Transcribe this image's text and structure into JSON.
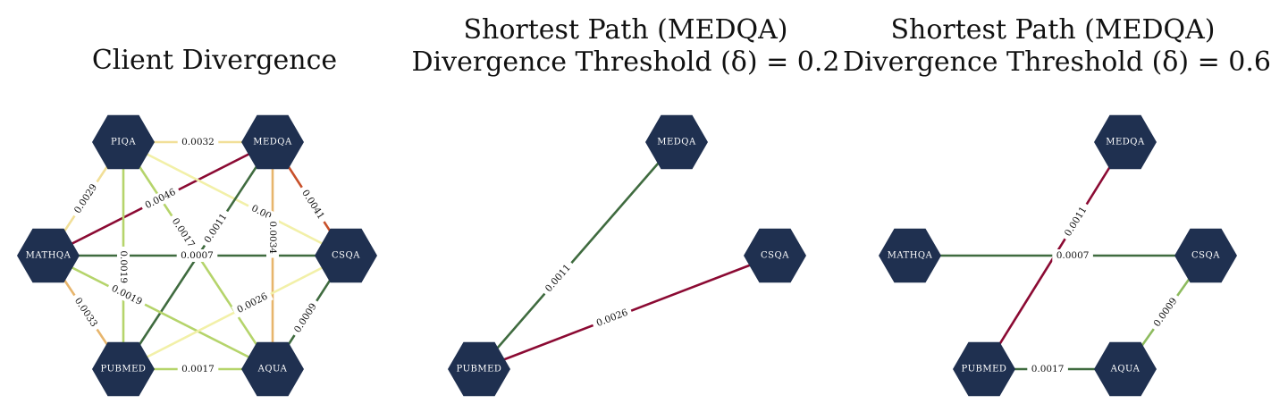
{
  "colors": {
    "node": "#1f3050",
    "node_text": "#ffffff",
    "edge_darkgreen": "#3f6b3f",
    "edge_lightgreen": "#b5d46b",
    "edge_paleyellow": "#f2f0a8",
    "edge_sand": "#f1df98",
    "edge_orange": "#e7b56c",
    "edge_red": "#c8502a",
    "edge_crimson": "#8b0a33"
  },
  "panels": [
    {
      "id": "client-divergence",
      "title_lines": [
        "Client Divergence"
      ],
      "nodes": [
        {
          "id": "PIQA",
          "label": "PIQA"
        },
        {
          "id": "MEDQA",
          "label": "MEDQA"
        },
        {
          "id": "MATHQA",
          "label": "MATHQA"
        },
        {
          "id": "CSQA",
          "label": "CSQA"
        },
        {
          "id": "PUBMED",
          "label": "PUBMED"
        },
        {
          "id": "AQUA",
          "label": "AQUA"
        }
      ],
      "edges": [
        {
          "from": "PIQA",
          "to": "MEDQA",
          "label": "0.0032",
          "color": "#f1df98"
        },
        {
          "from": "PIQA",
          "to": "MATHQA",
          "label": "0.0029",
          "color": "#f1df98"
        },
        {
          "from": "MEDQA",
          "to": "MATHQA",
          "label": "0.0046",
          "color": "#8b0a33"
        },
        {
          "from": "PIQA",
          "to": "PUBMED",
          "label": "0.0019",
          "color": "#b5d46b"
        },
        {
          "from": "PIQA",
          "to": "AQUA",
          "label": "0.0017",
          "color": "#b5d46b"
        },
        {
          "from": "PIQA",
          "to": "CSQA",
          "label": "0.00",
          "color": "#f2f0a8"
        },
        {
          "from": "MEDQA",
          "to": "PUBMED",
          "label": "0.0011",
          "color": "#3f6b3f"
        },
        {
          "from": "MEDQA",
          "to": "AQUA",
          "label": "0.0034",
          "color": "#e7b56c"
        },
        {
          "from": "MEDQA",
          "to": "CSQA",
          "label": "0.0041",
          "color": "#c8502a"
        },
        {
          "from": "MATHQA",
          "to": "CSQA",
          "label": "0.0007",
          "color": "#3f6b3f"
        },
        {
          "from": "MATHQA",
          "to": "PUBMED",
          "label": "0.0033",
          "color": "#e7b56c"
        },
        {
          "from": "MATHQA",
          "to": "AQUA",
          "label": "0.0019",
          "color": "#b5d46b"
        },
        {
          "from": "CSQA",
          "to": "PUBMED",
          "label": "0.0026",
          "color": "#f2f0a8"
        },
        {
          "from": "CSQA",
          "to": "AQUA",
          "label": "0.0009",
          "color": "#3f6b3f"
        },
        {
          "from": "PUBMED",
          "to": "AQUA",
          "label": "0.0017",
          "color": "#b5d46b"
        }
      ]
    },
    {
      "id": "shortest-path-02",
      "title_lines": [
        "Shortest Path (MEDQA)",
        "Divergence Threshold (δ) = 0.2"
      ],
      "nodes": [
        {
          "id": "MEDQA",
          "label": "MEDQA"
        },
        {
          "id": "CSQA",
          "label": "CSQA"
        },
        {
          "id": "PUBMED",
          "label": "PUBMED"
        }
      ],
      "edges": [
        {
          "from": "MEDQA",
          "to": "PUBMED",
          "label": "0.0011",
          "color": "#3f6b3f"
        },
        {
          "from": "CSQA",
          "to": "PUBMED",
          "label": "0.0026",
          "color": "#8b0a33"
        }
      ]
    },
    {
      "id": "shortest-path-06",
      "title_lines": [
        "Shortest Path (MEDQA)",
        "Divergence Threshold (δ) = 0.6"
      ],
      "nodes": [
        {
          "id": "MEDQA",
          "label": "MEDQA"
        },
        {
          "id": "MATHQA",
          "label": "MATHQA"
        },
        {
          "id": "CSQA",
          "label": "CSQA"
        },
        {
          "id": "PUBMED",
          "label": "PUBMED"
        },
        {
          "id": "AQUA",
          "label": "AQUA"
        }
      ],
      "edges": [
        {
          "from": "MEDQA",
          "to": "PUBMED",
          "label": "0.0011",
          "color": "#8b0a33"
        },
        {
          "from": "MATHQA",
          "to": "CSQA",
          "label": "0.0007",
          "color": "#3f6b3f"
        },
        {
          "from": "CSQA",
          "to": "AQUA",
          "label": "0.0009",
          "color": "#8dbb5e"
        },
        {
          "from": "PUBMED",
          "to": "AQUA",
          "label": "0.0017",
          "color": "#3f6b3f"
        }
      ]
    }
  ]
}
